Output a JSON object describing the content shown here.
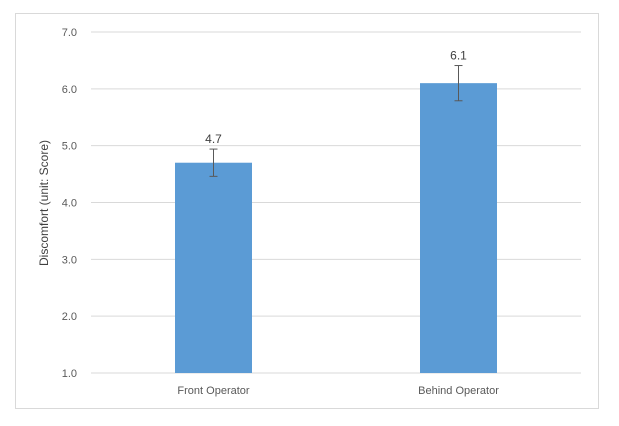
{
  "chart_data": {
    "type": "bar",
    "categories": [
      "Front Operator",
      "Behind Operator"
    ],
    "values": [
      4.7,
      6.1
    ],
    "error_bars": [
      0.24,
      0.31
    ],
    "data_labels": [
      "4.7",
      "6.1"
    ],
    "title": "",
    "xlabel": "",
    "ylabel": "Discomfort (unit: Score)",
    "ylim": [
      1.0,
      7.0
    ],
    "yticks": [
      1.0,
      2.0,
      3.0,
      4.0,
      5.0,
      6.0,
      7.0
    ],
    "ytick_labels": [
      "1.0",
      "2.0",
      "3.0",
      "4.0",
      "5.0",
      "6.0",
      "7.0"
    ],
    "grid": true,
    "legend": "none",
    "colors": {
      "bar": "#5b9bd5",
      "grid": "#d9d9d9",
      "error_bar": "#595959"
    }
  }
}
